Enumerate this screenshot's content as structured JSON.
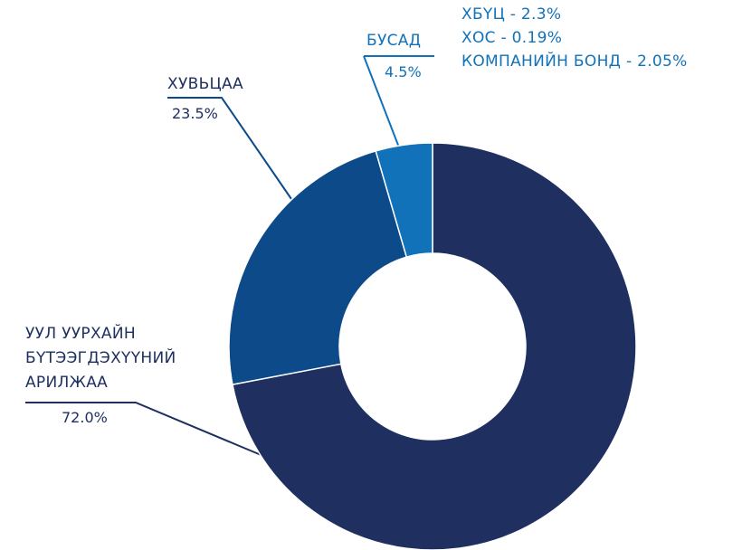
{
  "chart_data": {
    "type": "donut",
    "categories": [
      "УУЛ УУРХАЙН\nБҮТЭЭГДЭХҮҮНИЙ\nАРИЛЖАА",
      "ХУВЬЦАА",
      "БУСАД"
    ],
    "values": [
      72.0,
      23.5,
      4.5
    ],
    "value_labels": [
      "72.0%",
      "23.5%",
      "4.5%"
    ],
    "colors": [
      "#1f3060",
      "#0d4a8a",
      "#1172ba"
    ],
    "annotations": [
      "ХБҮЦ - 2.3%",
      "ХОС - 0.19%",
      "КОМПАНИЙН БОНД - 2.05%"
    ]
  }
}
